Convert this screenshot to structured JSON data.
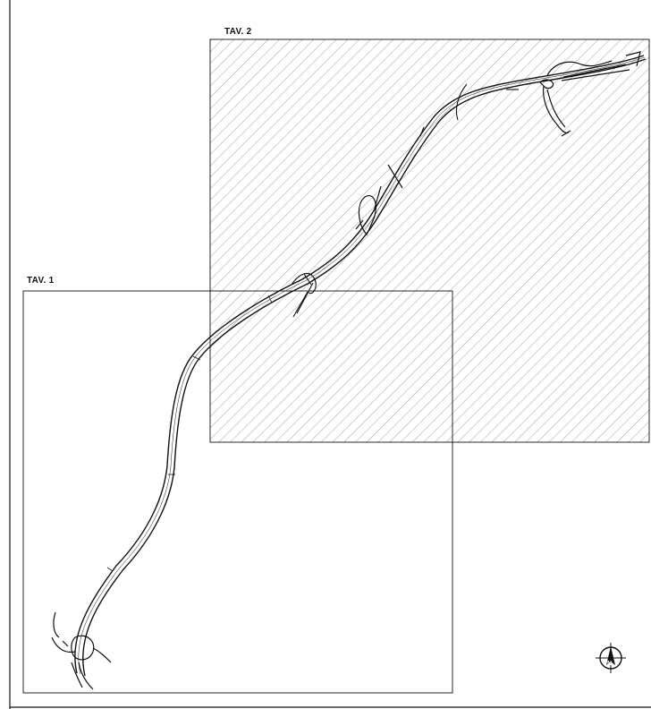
{
  "sheets": {
    "tav1_label": "TAV. 1",
    "tav2_label": "TAV. 2"
  },
  "compass": {
    "north_letter": "N",
    "icon": "north-arrow-icon"
  },
  "colors": {
    "line": "#111111",
    "hatch": "#8a8a8a",
    "background": "#ffffff"
  }
}
